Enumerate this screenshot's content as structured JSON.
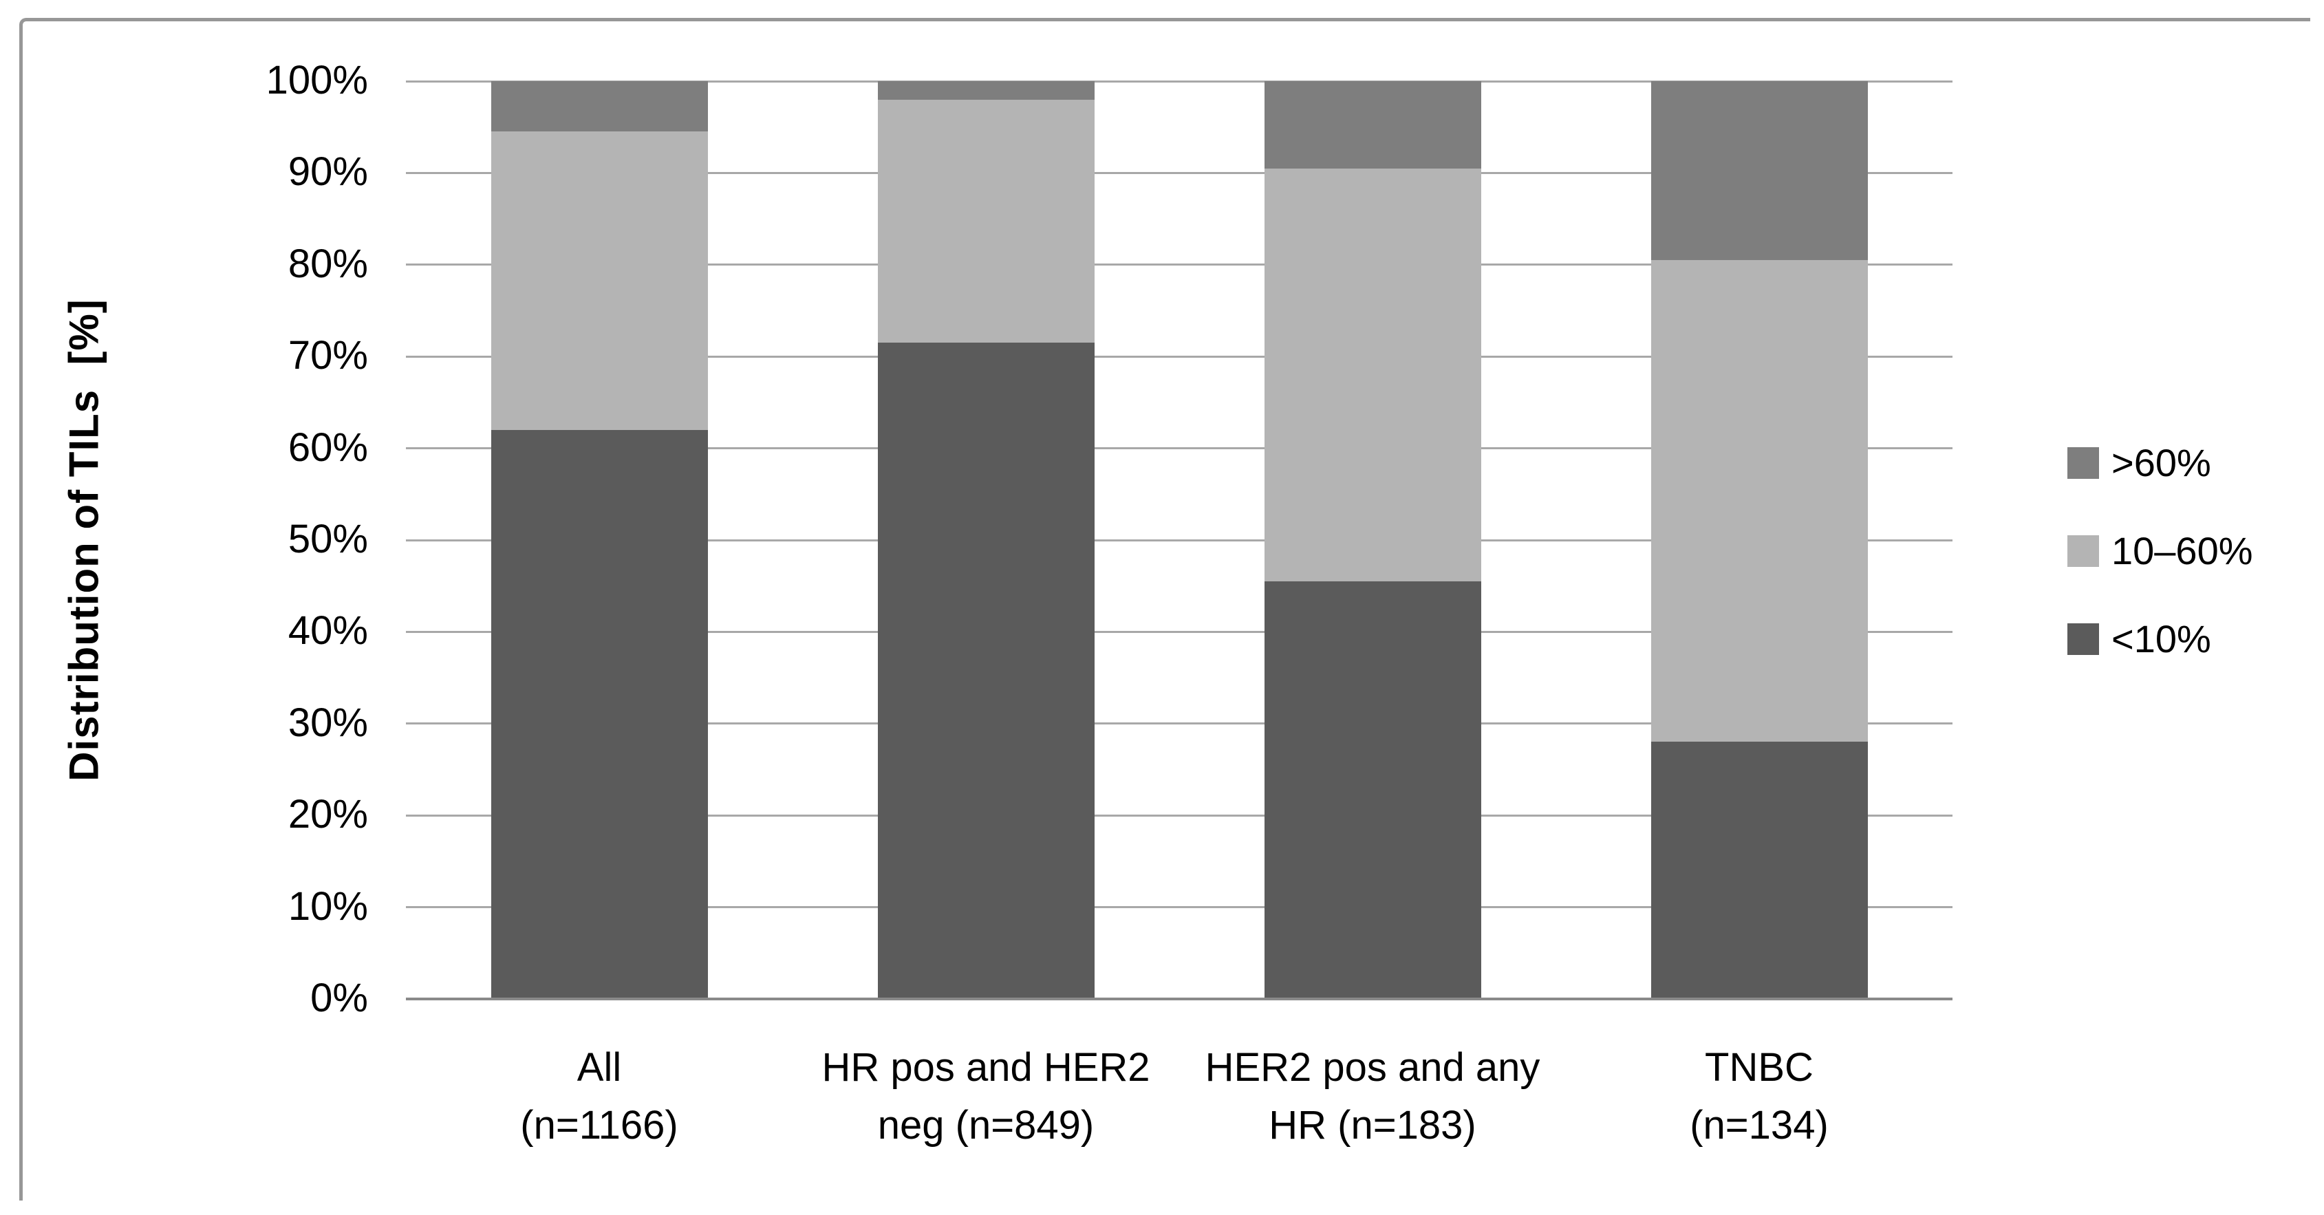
{
  "figure": {
    "background": "#ffffff",
    "frame_border_color": "#979797"
  },
  "chart_data": {
    "type": "bar",
    "stacked": true,
    "title": "",
    "xlabel": "",
    "ylabel": "Distribution of TILs  [%]",
    "ylim": [
      0,
      100
    ],
    "grid": "horizontal",
    "gridline_color": "#a8a8a8",
    "yticks": [
      "0%",
      "10%",
      "20%",
      "30%",
      "40%",
      "50%",
      "60%",
      "70%",
      "80%",
      "90%",
      "100%"
    ],
    "categories": [
      "All (n=1166)",
      "HR pos and HER2 neg (n=849)",
      "HER2 pos and any HR (n=183)",
      "TNBC (n=134)"
    ],
    "category_lines": [
      [
        "All",
        "(n=1166)"
      ],
      [
        "HR pos and HER2",
        "neg (n=849)"
      ],
      [
        "HER2 pos and any",
        "HR (n=183)"
      ],
      [
        "TNBC",
        "(n=134)"
      ]
    ],
    "category_keys": [
      "all",
      "hr-pos-her2-neg",
      "her2-pos-any-hr",
      "tnbc"
    ],
    "series": [
      {
        "key": "lt10",
        "name": "<10%",
        "color": "#5b5b5b",
        "values": [
          62.0,
          71.5,
          45.5,
          28.0
        ]
      },
      {
        "key": "10to60",
        "name": "10–60%",
        "color": "#b4b4b4",
        "values": [
          32.5,
          26.5,
          45.0,
          52.5
        ]
      },
      {
        "key": "gt60",
        "name": ">60%",
        "color": "#7e7e7e",
        "values": [
          5.5,
          2.0,
          9.5,
          19.5
        ]
      }
    ],
    "legend": {
      "position": "right",
      "entries_top_to_bottom": [
        ">60%",
        "10–60%",
        "<10%"
      ]
    }
  }
}
